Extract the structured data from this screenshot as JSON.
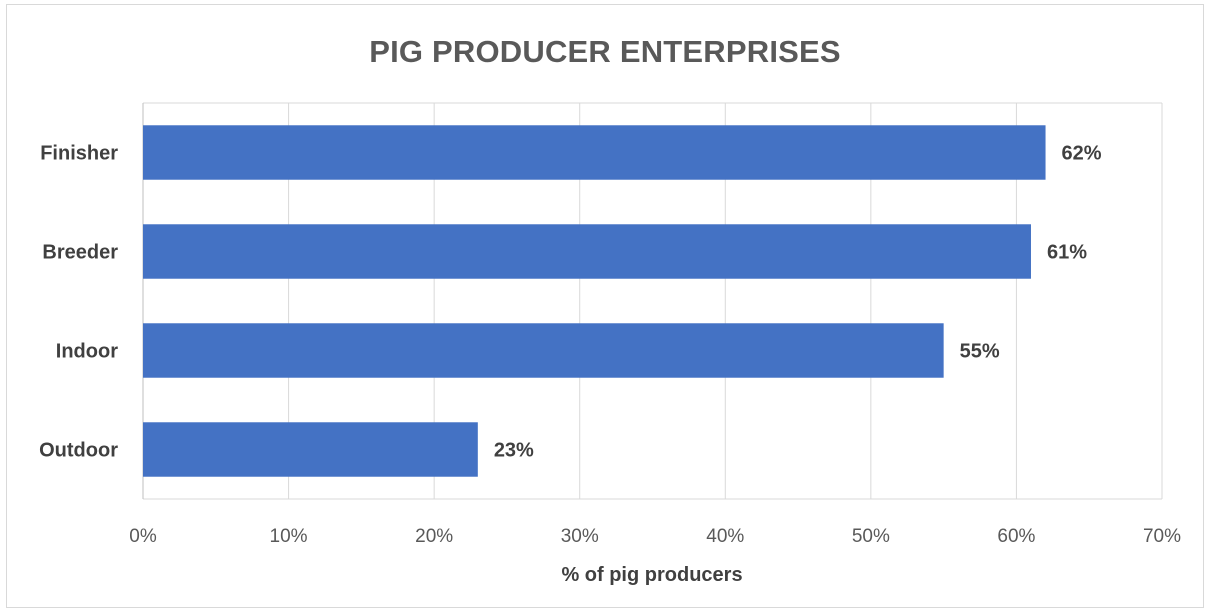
{
  "chart_data": {
    "type": "bar",
    "orientation": "horizontal",
    "title": "PIG PRODUCER ENTERPRISES",
    "xlabel": "% of pig producers",
    "ylabel": "",
    "categories": [
      "Finisher",
      "Breeder",
      "Indoor",
      "Outdoor"
    ],
    "values": [
      62,
      61,
      55,
      23
    ],
    "value_labels": [
      "62%",
      "61%",
      "55%",
      "23%"
    ],
    "xlim": [
      0,
      70
    ],
    "x_ticks": [
      0,
      10,
      20,
      30,
      40,
      50,
      60,
      70
    ],
    "x_tick_labels": [
      "0%",
      "10%",
      "20%",
      "30%",
      "40%",
      "50%",
      "60%",
      "70%"
    ],
    "grid": true,
    "legend": "none",
    "bar_color": "#4472C4"
  }
}
